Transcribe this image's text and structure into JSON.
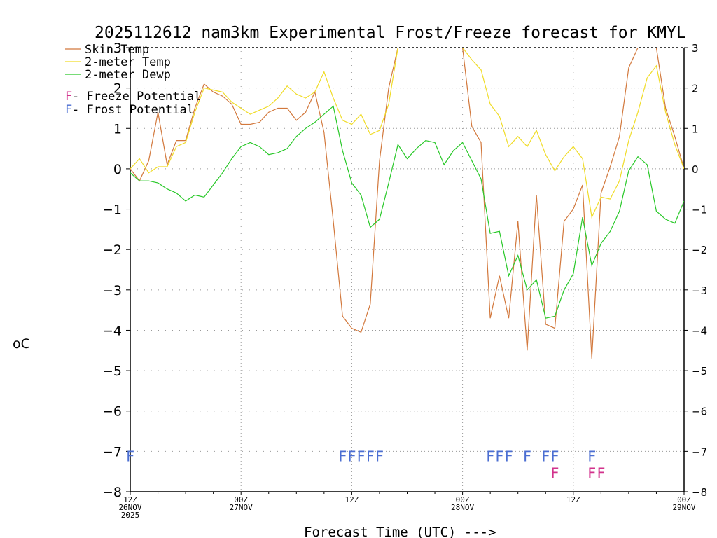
{
  "chart_data": {
    "type": "line",
    "title": "2025112612 nam3km Experimental Frost/Freeze forecast for KMYL",
    "xlabel": "Forecast Time (UTC) --->",
    "ylabel": "oC",
    "ylim": [
      -8,
      3
    ],
    "xlim": [
      0,
      60
    ],
    "yticks": [
      3,
      2,
      1,
      0,
      -1,
      -2,
      -3,
      -4,
      -5,
      -6,
      -7,
      -8
    ],
    "ytick_labels": [
      "3",
      "2",
      "1",
      "0",
      "−1",
      "−2",
      "−3",
      "−4",
      "−5",
      "−6",
      "−7",
      "−8"
    ],
    "xticks": [
      {
        "x": 0,
        "lines": [
          "12Z",
          "26NOV",
          "2025"
        ]
      },
      {
        "x": 12,
        "lines": [
          "00Z",
          "27NOV"
        ]
      },
      {
        "x": 24,
        "lines": [
          "12Z"
        ]
      },
      {
        "x": 36,
        "lines": [
          "00Z",
          "28NOV"
        ]
      },
      {
        "x": 48,
        "lines": [
          "12Z"
        ]
      },
      {
        "x": 60,
        "lines": [
          "00Z",
          "29NOV"
        ]
      }
    ],
    "grid": true,
    "colors": {
      "skin": "#d2783c",
      "temp": "#f0dc28",
      "dewp": "#28c828",
      "frost": "#4b6ed2",
      "freeze": "#d2328c"
    },
    "legend": [
      {
        "label": "Skin Temp",
        "color": "#d2783c",
        "line": true
      },
      {
        "label": "2-meter Temp",
        "color": "#f0dc28",
        "line": true
      },
      {
        "label": "2-meter Dewp",
        "color": "#28c828",
        "line": true
      }
    ],
    "flag_legend": [
      {
        "letter": "F",
        "text": " - Freeze Potential",
        "color": "#d2328c"
      },
      {
        "letter": "F",
        "text": " - Frost Potential",
        "color": "#4b6ed2"
      }
    ],
    "series": [
      {
        "name": "Skin Temp",
        "color": "#d2783c",
        "x": [
          0,
          1,
          2,
          3,
          4,
          5,
          6,
          7,
          8,
          9,
          10,
          11,
          12,
          13,
          14,
          15,
          16,
          17,
          18,
          19,
          20,
          21,
          22,
          23,
          24,
          25,
          26,
          27,
          28,
          29,
          36,
          37,
          38,
          39,
          40,
          41,
          42,
          43,
          44,
          45,
          46,
          47,
          48,
          49,
          50,
          51,
          52,
          53,
          54,
          55,
          56,
          57,
          58,
          59,
          60
        ],
        "y": [
          0,
          -0.3,
          0.2,
          1.4,
          0.1,
          0.7,
          0.7,
          1.5,
          2.1,
          1.9,
          1.8,
          1.6,
          1.1,
          1.1,
          1.15,
          1.4,
          1.5,
          1.5,
          1.2,
          1.4,
          1.9,
          0.9,
          -1.3,
          -3.65,
          -3.95,
          -4.05,
          -3.35,
          0.2,
          2.0,
          3.0,
          3.0,
          1.05,
          0.65,
          -3.7,
          -2.65,
          -3.7,
          -1.3,
          -4.5,
          -0.65,
          -3.85,
          -3.95,
          -1.3,
          -1.0,
          -0.4,
          -4.7,
          -0.6,
          0.05,
          0.8,
          2.5,
          3.0,
          3.0,
          3.0,
          1.5,
          0.8,
          0.0
        ]
      },
      {
        "name": "2-meter Temp",
        "color": "#f0dc28",
        "x": [
          0,
          1,
          2,
          3,
          4,
          5,
          6,
          7,
          8,
          9,
          10,
          11,
          12,
          13,
          14,
          15,
          16,
          17,
          18,
          19,
          20,
          21,
          22,
          23,
          24,
          25,
          26,
          27,
          28,
          29,
          36,
          37,
          38,
          39,
          40,
          41,
          42,
          43,
          44,
          45,
          46,
          47,
          48,
          49,
          50,
          51,
          52,
          53,
          54,
          55,
          56,
          57,
          58,
          59,
          60
        ],
        "y": [
          0,
          0.25,
          -0.1,
          0.05,
          0.05,
          0.55,
          0.65,
          1.4,
          2.0,
          1.95,
          1.9,
          1.65,
          1.5,
          1.35,
          1.45,
          1.55,
          1.75,
          2.05,
          1.85,
          1.75,
          1.9,
          2.4,
          1.75,
          1.2,
          1.1,
          1.35,
          0.85,
          0.95,
          1.6,
          3.0,
          3.0,
          2.7,
          2.45,
          1.6,
          1.3,
          0.55,
          0.8,
          0.55,
          0.95,
          0.35,
          -0.05,
          0.3,
          0.55,
          0.25,
          -1.2,
          -0.7,
          -0.75,
          -0.3,
          0.7,
          1.4,
          2.25,
          2.55,
          1.4,
          0.6,
          0.0
        ]
      },
      {
        "name": "2-meter Dewp",
        "color": "#28c828",
        "x": [
          0,
          1,
          2,
          3,
          4,
          5,
          6,
          7,
          8,
          9,
          10,
          11,
          12,
          13,
          14,
          15,
          16,
          17,
          18,
          19,
          20,
          21,
          22,
          23,
          24,
          25,
          26,
          27,
          28,
          29,
          30,
          31,
          32,
          33,
          34,
          35,
          36,
          37,
          38,
          39,
          40,
          41,
          42,
          43,
          44,
          45,
          46,
          47,
          48,
          49,
          50,
          51,
          52,
          53,
          54,
          55,
          56,
          57,
          58,
          59,
          60
        ],
        "y": [
          -0.1,
          -0.3,
          -0.3,
          -0.35,
          -0.5,
          -0.6,
          -0.8,
          -0.65,
          -0.7,
          -0.4,
          -0.1,
          0.25,
          0.55,
          0.65,
          0.55,
          0.35,
          0.4,
          0.5,
          0.8,
          1.0,
          1.15,
          1.35,
          1.55,
          0.45,
          -0.35,
          -0.65,
          -1.45,
          -1.25,
          -0.35,
          0.6,
          0.25,
          0.5,
          0.7,
          0.65,
          0.1,
          0.45,
          0.65,
          0.2,
          -0.25,
          -1.6,
          -1.55,
          -2.65,
          -2.15,
          -3.0,
          -2.75,
          -3.7,
          -3.65,
          -3.0,
          -2.6,
          -1.2,
          -2.4,
          -1.85,
          -1.55,
          -1.05,
          -0.05,
          0.3,
          0.1,
          -1.05,
          -1.25,
          -1.35,
          -0.8
        ]
      }
    ],
    "frost_flags": [
      0,
      23,
      24,
      25,
      26,
      27,
      39,
      40,
      41,
      43,
      45,
      46,
      50
    ],
    "freeze_flags": [
      46,
      50,
      51
    ]
  }
}
